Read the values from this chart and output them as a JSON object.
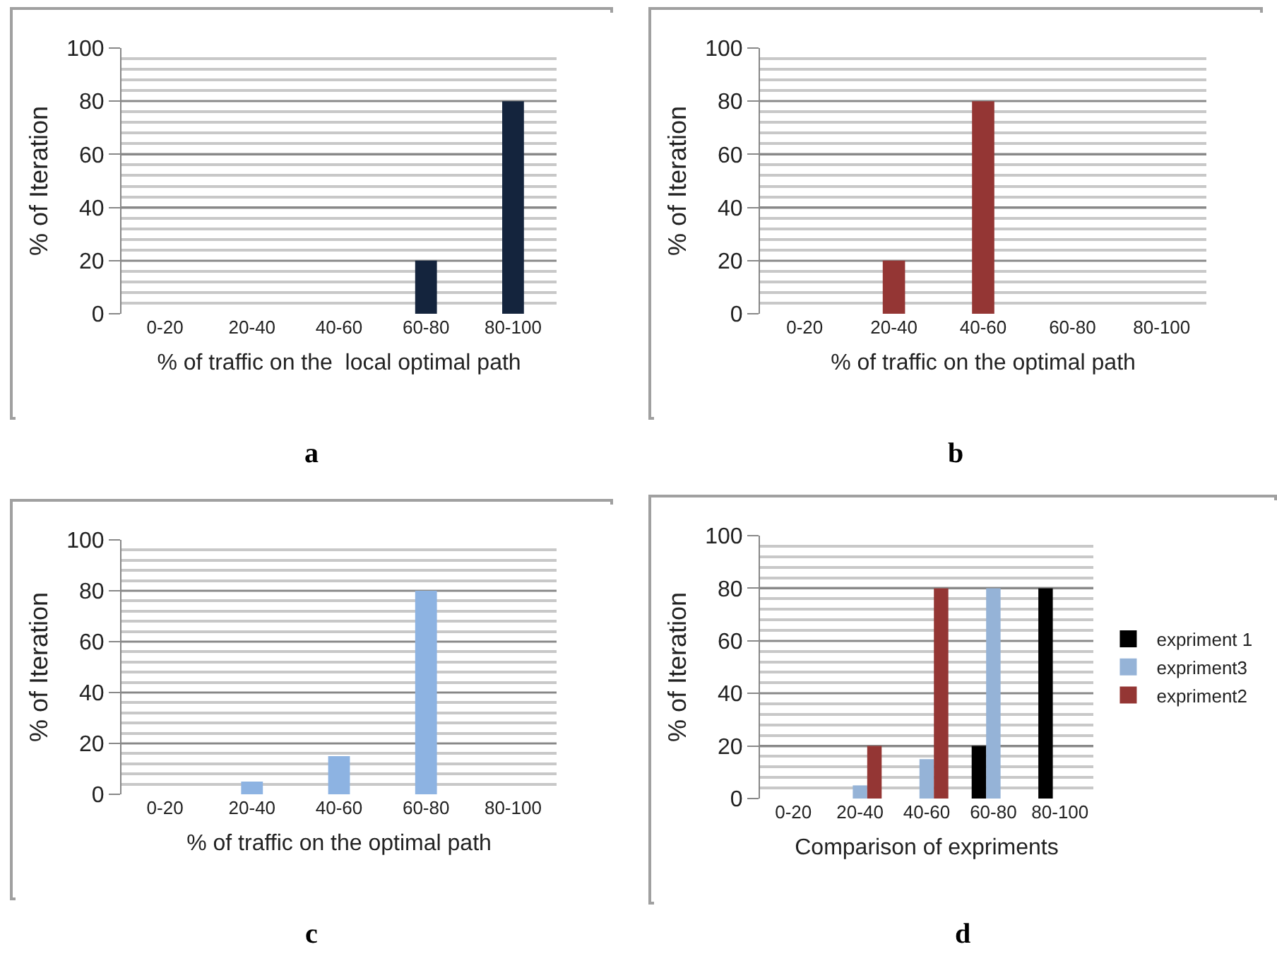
{
  "chart_data": [
    {
      "type": "bar",
      "xlabel": "% of traffic on the  local optimal path",
      "ylabel": "% of Iteration",
      "annotations": [
        "a"
      ],
      "categories": [
        "0-20",
        "20-40",
        "40-60",
        "60-80",
        "80-100"
      ],
      "values": [
        0,
        0,
        0,
        20,
        80
      ],
      "color": "#14243d",
      "ylim": [
        0,
        100
      ],
      "yticks": [
        0,
        20,
        40,
        60,
        80,
        100
      ],
      "grid": "y"
    },
    {
      "type": "bar",
      "xlabel": "% of traffic on the optimal path",
      "ylabel": "% of Iteration",
      "annotations": [
        "b"
      ],
      "categories": [
        "0-20",
        "20-40",
        "40-60",
        "60-80",
        "80-100"
      ],
      "values": [
        0,
        20,
        80,
        0,
        0
      ],
      "color": "#943634",
      "ylim": [
        0,
        100
      ],
      "yticks": [
        0,
        20,
        40,
        60,
        80,
        100
      ],
      "grid": "y"
    },
    {
      "type": "bar",
      "xlabel": "% of traffic on the optimal path",
      "ylabel": "% of Iteration",
      "annotations": [
        "c"
      ],
      "categories": [
        "0-20",
        "20-40",
        "40-60",
        "60-80",
        "80-100"
      ],
      "values": [
        0,
        5,
        15,
        80,
        0
      ],
      "color": "#8db3e2",
      "ylim": [
        0,
        100
      ],
      "yticks": [
        0,
        20,
        40,
        60,
        80,
        100
      ],
      "grid": "y"
    },
    {
      "type": "bar",
      "xlabel": "Comparison of expriments",
      "ylabel": "% of Iteration",
      "annotations": [
        "d"
      ],
      "categories": [
        "0-20",
        "20-40",
        "40-60",
        "60-80",
        "80-100"
      ],
      "series": [
        {
          "name": "expriment 1",
          "color": "#000000",
          "values": [
            0,
            0,
            0,
            20,
            80
          ]
        },
        {
          "name": "expriment3",
          "color": "#95b3d7",
          "values": [
            0,
            5,
            15,
            80,
            0
          ]
        },
        {
          "name": "expriment2",
          "color": "#943634",
          "values": [
            0,
            20,
            80,
            0,
            0
          ]
        }
      ],
      "ylim": [
        0,
        100
      ],
      "yticks": [
        0,
        20,
        40,
        60,
        80,
        100
      ],
      "grid": "y",
      "legend": "right"
    }
  ]
}
